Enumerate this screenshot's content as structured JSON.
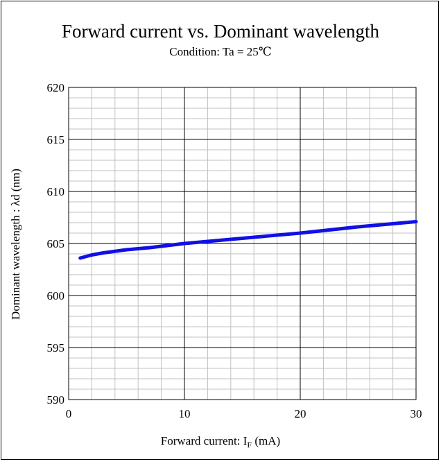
{
  "chart_data": {
    "type": "line",
    "title": "Forward current vs. Dominant wavelength",
    "subtitle": "Condition: Ta = 25℃",
    "xlabel": {
      "main": "Forward current: I",
      "sub": "F",
      "unit": " (mA)"
    },
    "ylabel": "Dominant wavelength : λd (nm)",
    "xlim": [
      0,
      30
    ],
    "ylim": [
      590,
      620
    ],
    "x_ticks": [
      0,
      10,
      20,
      30
    ],
    "y_ticks": [
      590,
      595,
      600,
      605,
      610,
      615,
      620
    ],
    "x_tick_labels": [
      "0",
      "10",
      "20",
      "30"
    ],
    "y_tick_labels": [
      "590",
      "595",
      "600",
      "605",
      "610",
      "615",
      "620"
    ],
    "grid": true,
    "series": [
      {
        "color": "#1010e6",
        "x": [
          1,
          2,
          3,
          5,
          7,
          10,
          15,
          20,
          25,
          30
        ],
        "y": [
          603.6,
          603.9,
          604.1,
          604.4,
          604.6,
          605.0,
          605.5,
          606.0,
          606.6,
          607.1
        ]
      }
    ]
  }
}
